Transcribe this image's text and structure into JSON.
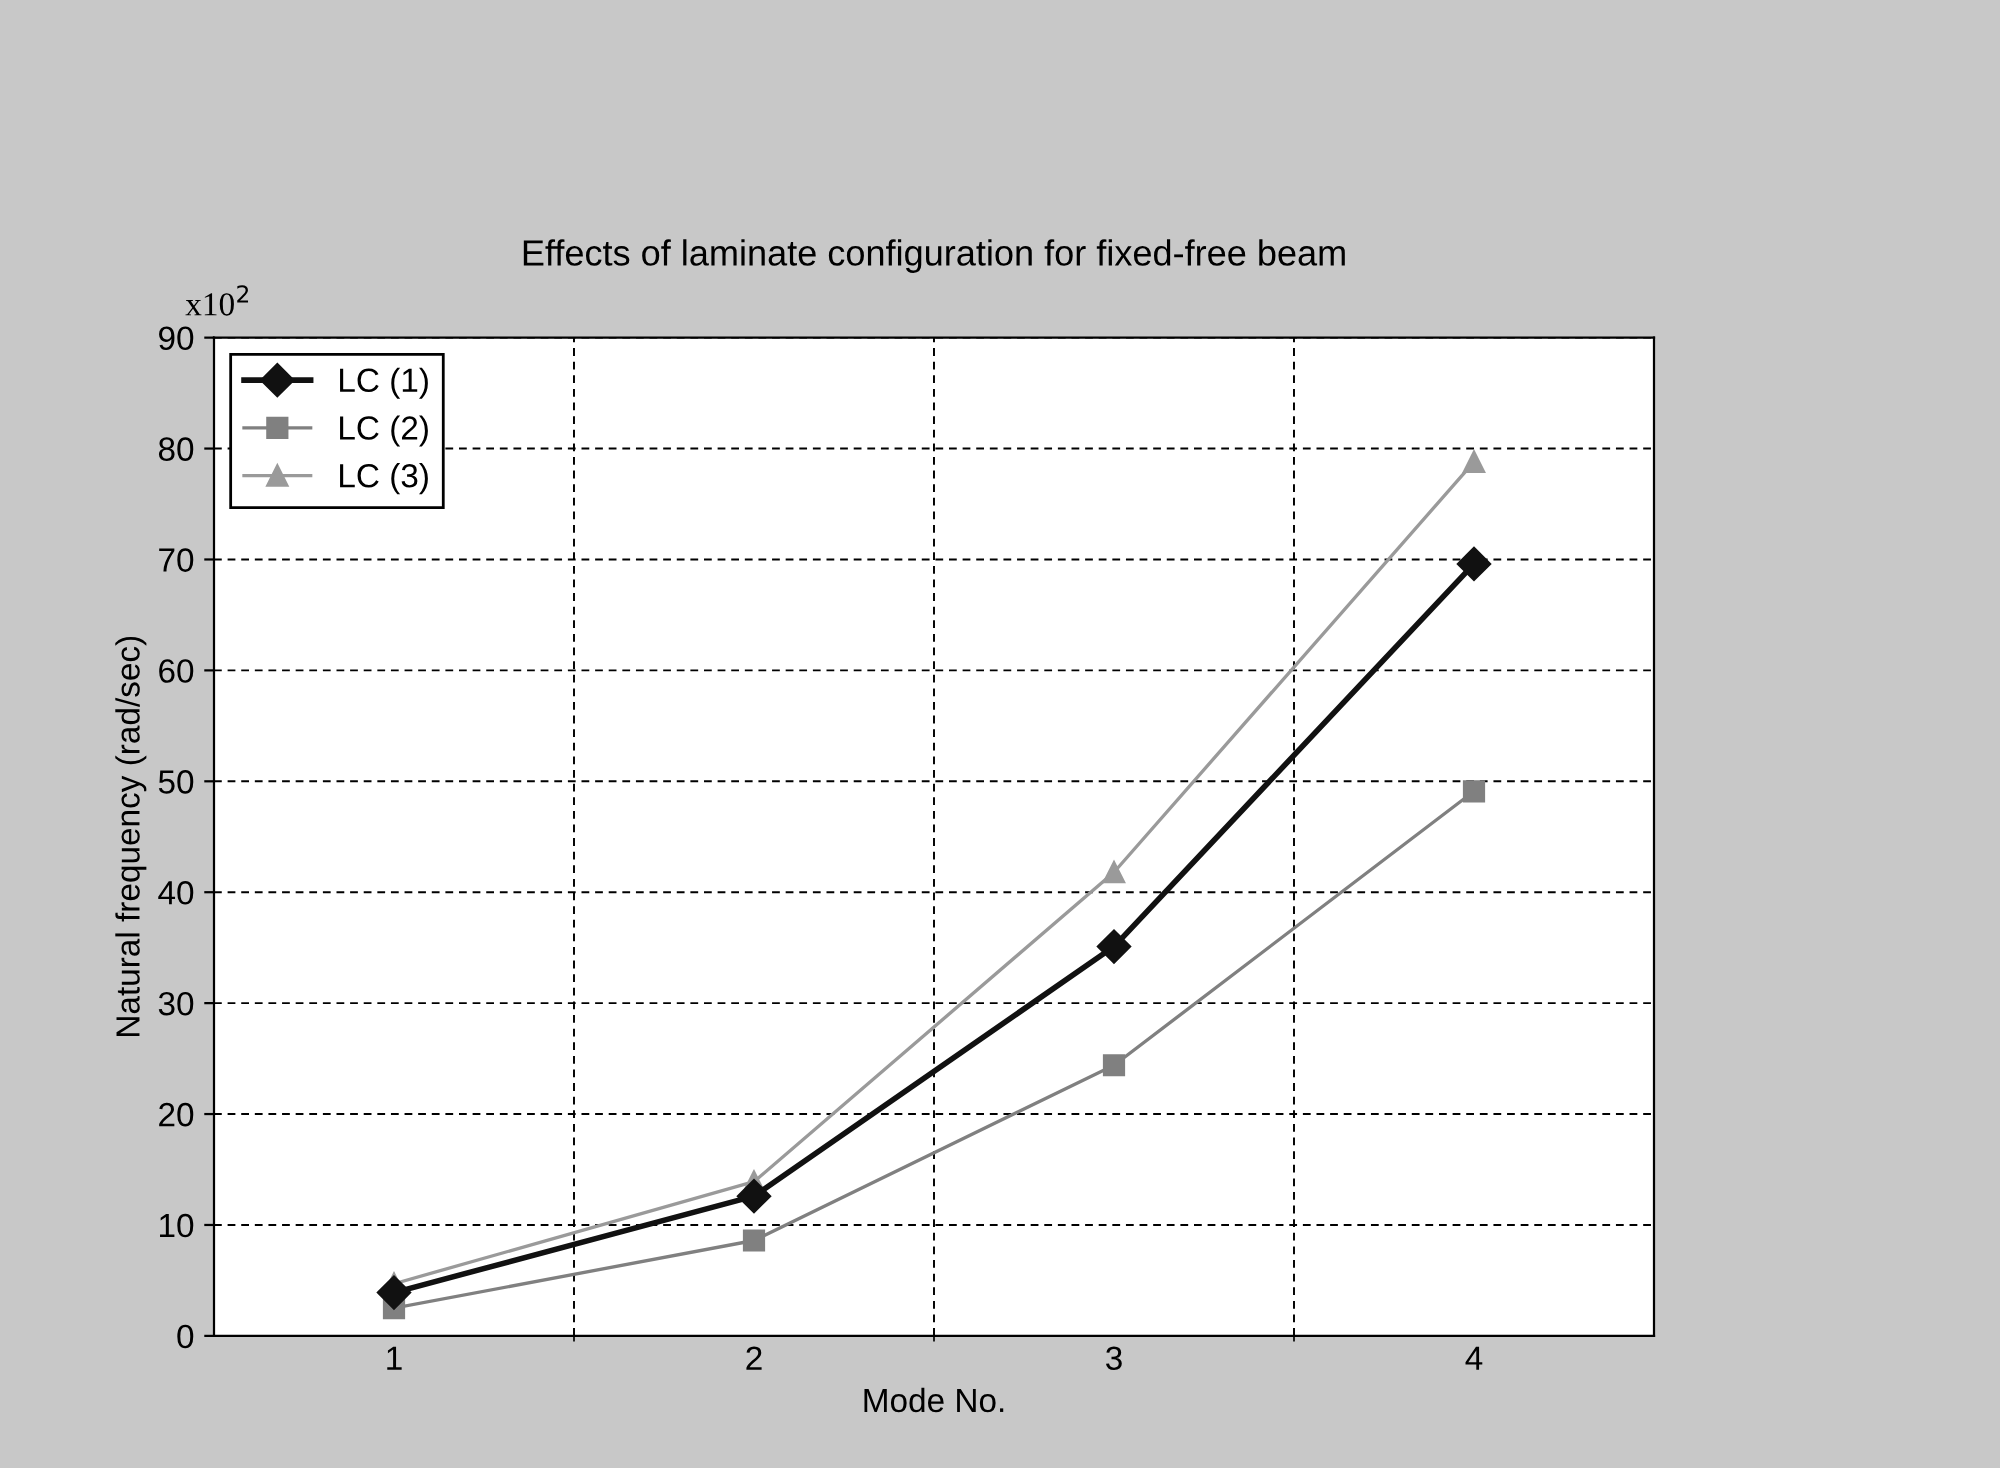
{
  "chart_data": {
    "type": "line",
    "title": "Effects of laminate configuration for fixed-free beam",
    "xlabel": "Mode No.",
    "ylabel": "Natural frequency (rad/sec)",
    "annotations": [
      "x10$^{2}$"
    ],
    "categories": [
      "1",
      "2",
      "3",
      "4"
    ],
    "series": [
      {
        "name": "LC (1)",
        "color": "#111111",
        "marker": "diamond",
        "values": [
          3.9,
          12.6,
          35.1,
          69.6
        ]
      },
      {
        "name": "LC (2)",
        "color": "#808080",
        "marker": "square",
        "values": [
          2.5,
          8.6,
          24.4,
          49.1
        ]
      },
      {
        "name": "LC (3)",
        "color": "#9a9a9a",
        "marker": "triangle",
        "values": [
          4.7,
          13.9,
          41.8,
          78.8
        ]
      }
    ],
    "ylim": [
      0,
      90
    ],
    "yticks": [
      0,
      10,
      20,
      30,
      40,
      50,
      60,
      70,
      80,
      90
    ],
    "grid": true,
    "legend": "top left",
    "line_style": "solid"
  }
}
